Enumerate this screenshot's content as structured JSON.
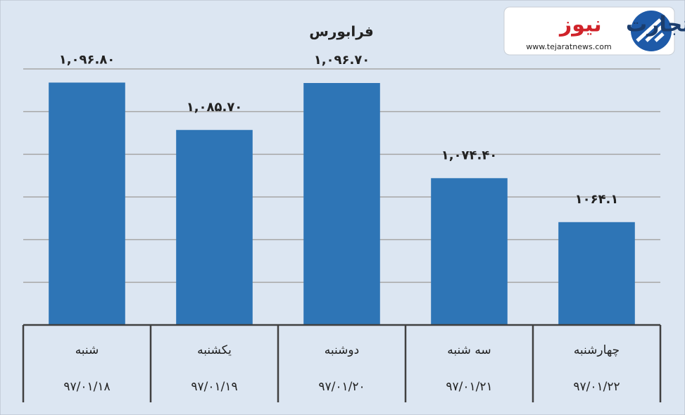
{
  "chart_data": {
    "type": "bar",
    "title": "فرابورس",
    "categories": [
      "شنبه",
      "یکشنبه",
      "دوشنبه",
      "سه شنبه",
      "چهارشنبه"
    ],
    "dates": [
      "۹۷/۰۱/۱۸",
      "۹۷/۰۱/۱۹",
      "۹۷/۰۱/۲۰",
      "۹۷/۰۱/۲۱",
      "۹۷/۰۱/۲۲"
    ],
    "values": [
      1096.8,
      1085.7,
      1096.7,
      1074.4,
      1064.1
    ],
    "value_labels": [
      "۱,۰۹۶.۸۰",
      "۱,۰۸۵.۷۰",
      "۱,۰۹۶.۷۰",
      "۱,۰۷۴.۴۰",
      "۱۰۶۴.۱"
    ],
    "color": "#2e75b6",
    "ylim": [
      1040,
      1100
    ],
    "yticks": [
      1040,
      1050,
      1060,
      1070,
      1080,
      1090,
      1100
    ],
    "grid": true
  },
  "logo": {
    "brand": [
      "تجارت",
      "نیوز"
    ],
    "url": "www.tejaratnews.com"
  }
}
